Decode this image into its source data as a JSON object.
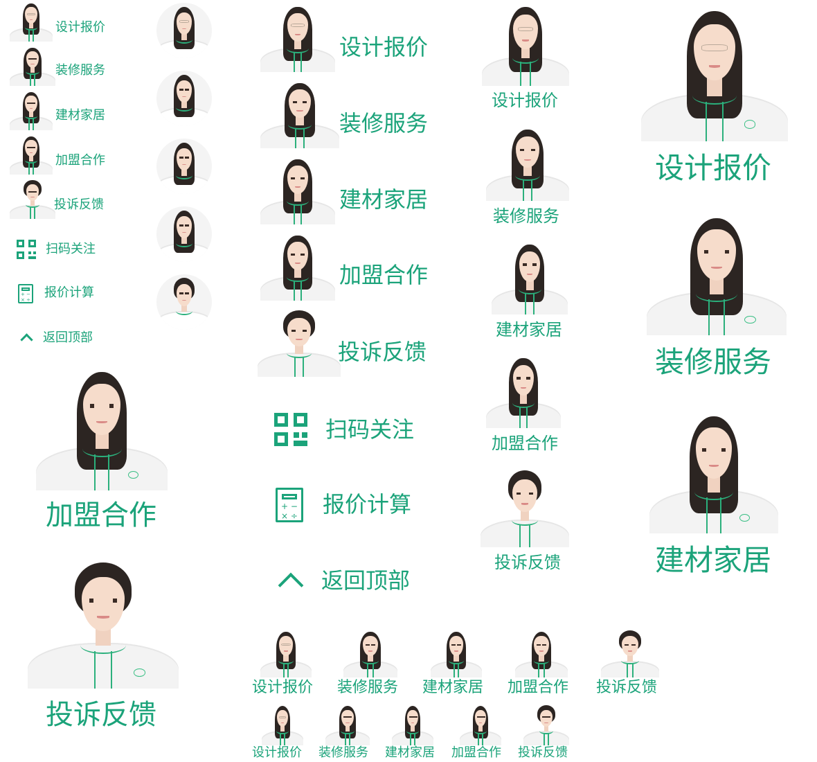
{
  "labels": {
    "design_quote": "设计报价",
    "renovation": "装修服务",
    "materials": "建材家居",
    "franchise": "加盟合作",
    "complaint": "投诉反馈",
    "scan_follow": "扫码关注",
    "quote_calc": "报价计算",
    "back_top": "返回顶部"
  },
  "colors": {
    "accent": "#1ba37a",
    "lanyard": "#2bb07c",
    "background": "#ffffff"
  },
  "icons": {
    "scan": "qr-code-icon",
    "calculator": "calculator-icon",
    "back_to_top": "chevron-up-icon"
  }
}
